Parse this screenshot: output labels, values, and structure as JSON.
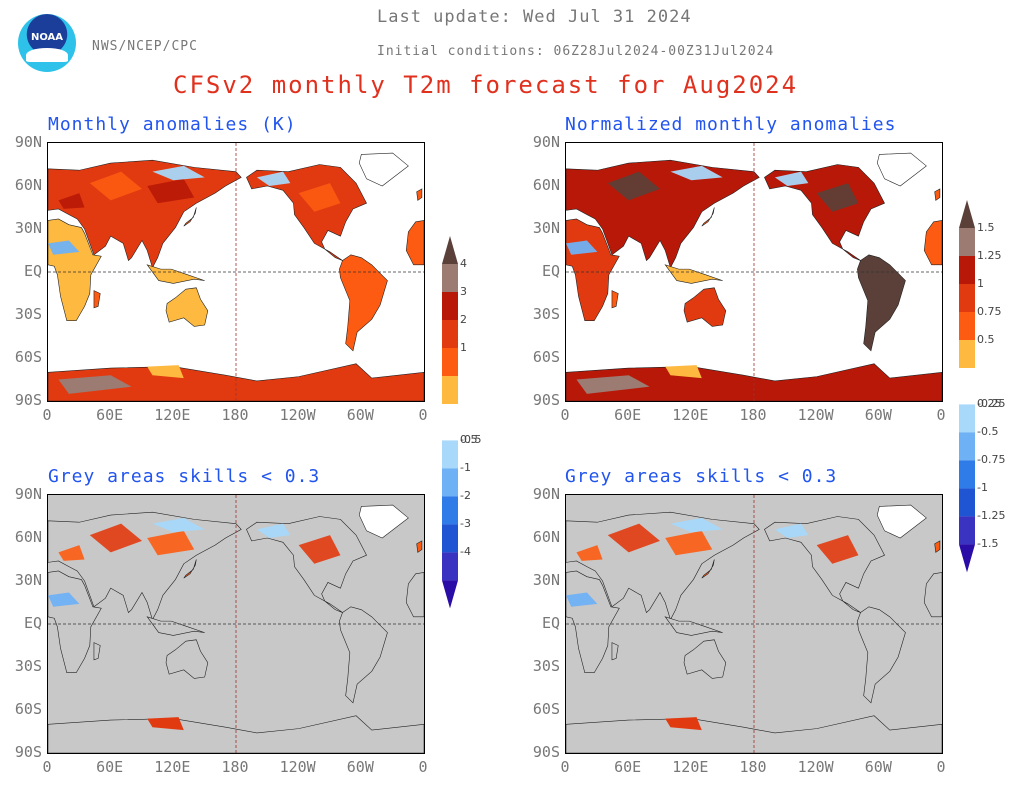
{
  "header": {
    "last_update": "Last update: Wed Jul 31 2024",
    "initial_conditions": "Initial conditions: 06Z28Jul2024-00Z31Jul2024",
    "agency": "NWS/NCEP/CPC",
    "logo_text": "NOAA",
    "title": "CFSv2 monthly T2m forecast for Aug2024"
  },
  "panels": [
    {
      "id": "anom",
      "title": "Monthly anomalies (K)"
    },
    {
      "id": "norm",
      "title": "Normalized monthly anomalies"
    },
    {
      "id": "anom-skill",
      "title": "Grey areas skills < 0.3"
    },
    {
      "id": "norm-skill",
      "title": "Grey areas skills < 0.3"
    }
  ],
  "axes": {
    "lat_labels": [
      "90N",
      "60N",
      "30N",
      "EQ",
      "30S",
      "60S",
      "90S"
    ],
    "lon_labels": [
      "0",
      "60E",
      "120E",
      "180",
      "120W",
      "60W",
      "0"
    ]
  },
  "colorbar_anom": {
    "labels": [
      "4",
      "3",
      "2",
      "1",
      "0.5",
      "-0.5",
      "-1",
      "-2",
      "-3",
      "-4"
    ]
  },
  "colorbar_norm": {
    "labels": [
      "1.5",
      "1.25",
      "1",
      "0.75",
      "0.5",
      "0.25",
      "-0.25",
      "-0.5",
      "-0.75",
      "-1",
      "-1.25",
      "-1.5"
    ]
  },
  "colors": {
    "warm": [
      "#fdb940",
      "#fd5b12",
      "#e23a10",
      "#b81808",
      "#9b7b72",
      "#5a4038"
    ],
    "cool": [
      "#a8d8fa",
      "#6fb1f5",
      "#2f7be8",
      "#1f55d2",
      "#3a32c0",
      "#2a0ca6"
    ],
    "grey": "#c8c8c8",
    "land": "#ffffff"
  }
}
